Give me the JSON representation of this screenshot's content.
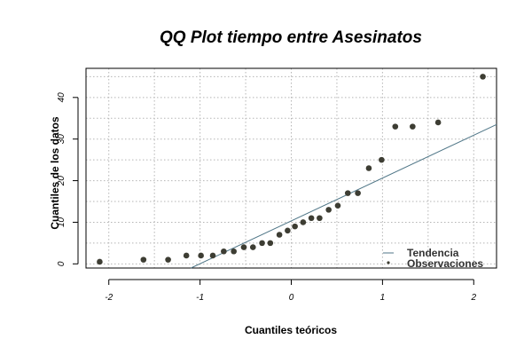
{
  "chart_data": {
    "type": "scatter",
    "title": "QQ Plot tiempo entre Asesinatos",
    "xlabel": "Cuantiles teóricos",
    "ylabel": "Cuantiles de los datos",
    "xlim": [
      -2.25,
      2.25
    ],
    "ylim": [
      -1,
      47
    ],
    "xticks": [
      -2,
      -1,
      0,
      1,
      2
    ],
    "yticks": [
      0,
      10,
      20,
      30,
      40
    ],
    "grid": true,
    "legend_position": "bottom-right",
    "series": [
      {
        "name": "Observaciones",
        "kind": "points",
        "color": "#3d3d33",
        "x": [
          -2.1,
          -1.62,
          -1.35,
          -1.15,
          -0.99,
          -0.86,
          -0.74,
          -0.63,
          -0.52,
          -0.42,
          -0.32,
          -0.23,
          -0.13,
          -0.04,
          0.04,
          0.13,
          0.22,
          0.31,
          0.41,
          0.51,
          0.62,
          0.73,
          0.85,
          0.99,
          1.14,
          1.33,
          1.61,
          2.1
        ],
        "y": [
          0.5,
          1,
          1,
          2,
          2,
          2,
          3,
          3,
          4,
          4,
          5,
          5,
          7,
          8,
          9,
          10,
          11,
          11,
          13,
          14,
          17,
          17,
          23,
          25,
          33,
          33,
          34,
          45
        ]
      },
      {
        "name": "Tendencia",
        "kind": "line",
        "color": "#4f7687",
        "x": [
          -1.1,
          2.25
        ],
        "y": [
          -1,
          33.5
        ]
      }
    ]
  }
}
